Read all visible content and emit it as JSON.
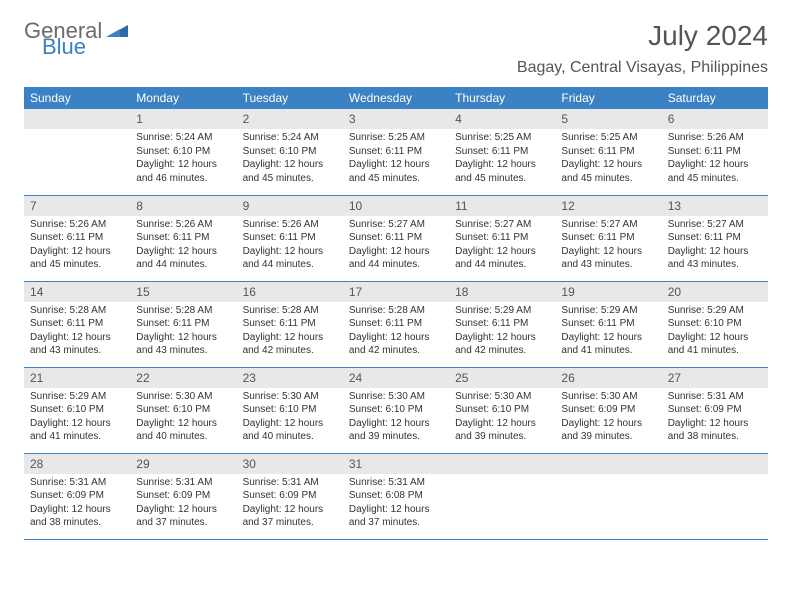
{
  "brand": {
    "word1": "General",
    "word2": "Blue"
  },
  "title": "July 2024",
  "location": "Bagay, Central Visayas, Philippines",
  "colors": {
    "header_bg": "#3b82c4",
    "header_fg": "#ffffff",
    "daynum_bg": "#e8e8e8",
    "daynum_fg": "#555555",
    "text": "#333333",
    "rule": "#3b82c4",
    "page_bg": "#ffffff",
    "logo_gray": "#6b6b6b",
    "logo_blue": "#3b82c4"
  },
  "typography": {
    "title_fontsize": 28,
    "location_fontsize": 16,
    "dayheader_fontsize": 12,
    "daynum_fontsize": 12,
    "body_fontsize": 10
  },
  "layout": {
    "columns": 7,
    "rows": 5,
    "start_day_index": 1
  },
  "day_headers": [
    "Sunday",
    "Monday",
    "Tuesday",
    "Wednesday",
    "Thursday",
    "Friday",
    "Saturday"
  ],
  "days": [
    {
      "n": 1,
      "sunrise": "5:24 AM",
      "sunset": "6:10 PM",
      "daylight": "12 hours and 46 minutes."
    },
    {
      "n": 2,
      "sunrise": "5:24 AM",
      "sunset": "6:10 PM",
      "daylight": "12 hours and 45 minutes."
    },
    {
      "n": 3,
      "sunrise": "5:25 AM",
      "sunset": "6:11 PM",
      "daylight": "12 hours and 45 minutes."
    },
    {
      "n": 4,
      "sunrise": "5:25 AM",
      "sunset": "6:11 PM",
      "daylight": "12 hours and 45 minutes."
    },
    {
      "n": 5,
      "sunrise": "5:25 AM",
      "sunset": "6:11 PM",
      "daylight": "12 hours and 45 minutes."
    },
    {
      "n": 6,
      "sunrise": "5:26 AM",
      "sunset": "6:11 PM",
      "daylight": "12 hours and 45 minutes."
    },
    {
      "n": 7,
      "sunrise": "5:26 AM",
      "sunset": "6:11 PM",
      "daylight": "12 hours and 45 minutes."
    },
    {
      "n": 8,
      "sunrise": "5:26 AM",
      "sunset": "6:11 PM",
      "daylight": "12 hours and 44 minutes."
    },
    {
      "n": 9,
      "sunrise": "5:26 AM",
      "sunset": "6:11 PM",
      "daylight": "12 hours and 44 minutes."
    },
    {
      "n": 10,
      "sunrise": "5:27 AM",
      "sunset": "6:11 PM",
      "daylight": "12 hours and 44 minutes."
    },
    {
      "n": 11,
      "sunrise": "5:27 AM",
      "sunset": "6:11 PM",
      "daylight": "12 hours and 44 minutes."
    },
    {
      "n": 12,
      "sunrise": "5:27 AM",
      "sunset": "6:11 PM",
      "daylight": "12 hours and 43 minutes."
    },
    {
      "n": 13,
      "sunrise": "5:27 AM",
      "sunset": "6:11 PM",
      "daylight": "12 hours and 43 minutes."
    },
    {
      "n": 14,
      "sunrise": "5:28 AM",
      "sunset": "6:11 PM",
      "daylight": "12 hours and 43 minutes."
    },
    {
      "n": 15,
      "sunrise": "5:28 AM",
      "sunset": "6:11 PM",
      "daylight": "12 hours and 43 minutes."
    },
    {
      "n": 16,
      "sunrise": "5:28 AM",
      "sunset": "6:11 PM",
      "daylight": "12 hours and 42 minutes."
    },
    {
      "n": 17,
      "sunrise": "5:28 AM",
      "sunset": "6:11 PM",
      "daylight": "12 hours and 42 minutes."
    },
    {
      "n": 18,
      "sunrise": "5:29 AM",
      "sunset": "6:11 PM",
      "daylight": "12 hours and 42 minutes."
    },
    {
      "n": 19,
      "sunrise": "5:29 AM",
      "sunset": "6:11 PM",
      "daylight": "12 hours and 41 minutes."
    },
    {
      "n": 20,
      "sunrise": "5:29 AM",
      "sunset": "6:10 PM",
      "daylight": "12 hours and 41 minutes."
    },
    {
      "n": 21,
      "sunrise": "5:29 AM",
      "sunset": "6:10 PM",
      "daylight": "12 hours and 41 minutes."
    },
    {
      "n": 22,
      "sunrise": "5:30 AM",
      "sunset": "6:10 PM",
      "daylight": "12 hours and 40 minutes."
    },
    {
      "n": 23,
      "sunrise": "5:30 AM",
      "sunset": "6:10 PM",
      "daylight": "12 hours and 40 minutes."
    },
    {
      "n": 24,
      "sunrise": "5:30 AM",
      "sunset": "6:10 PM",
      "daylight": "12 hours and 39 minutes."
    },
    {
      "n": 25,
      "sunrise": "5:30 AM",
      "sunset": "6:10 PM",
      "daylight": "12 hours and 39 minutes."
    },
    {
      "n": 26,
      "sunrise": "5:30 AM",
      "sunset": "6:09 PM",
      "daylight": "12 hours and 39 minutes."
    },
    {
      "n": 27,
      "sunrise": "5:31 AM",
      "sunset": "6:09 PM",
      "daylight": "12 hours and 38 minutes."
    },
    {
      "n": 28,
      "sunrise": "5:31 AM",
      "sunset": "6:09 PM",
      "daylight": "12 hours and 38 minutes."
    },
    {
      "n": 29,
      "sunrise": "5:31 AM",
      "sunset": "6:09 PM",
      "daylight": "12 hours and 37 minutes."
    },
    {
      "n": 30,
      "sunrise": "5:31 AM",
      "sunset": "6:09 PM",
      "daylight": "12 hours and 37 minutes."
    },
    {
      "n": 31,
      "sunrise": "5:31 AM",
      "sunset": "6:08 PM",
      "daylight": "12 hours and 37 minutes."
    }
  ],
  "labels": {
    "sunrise": "Sunrise: ",
    "sunset": "Sunset: ",
    "daylight": "Daylight: "
  }
}
